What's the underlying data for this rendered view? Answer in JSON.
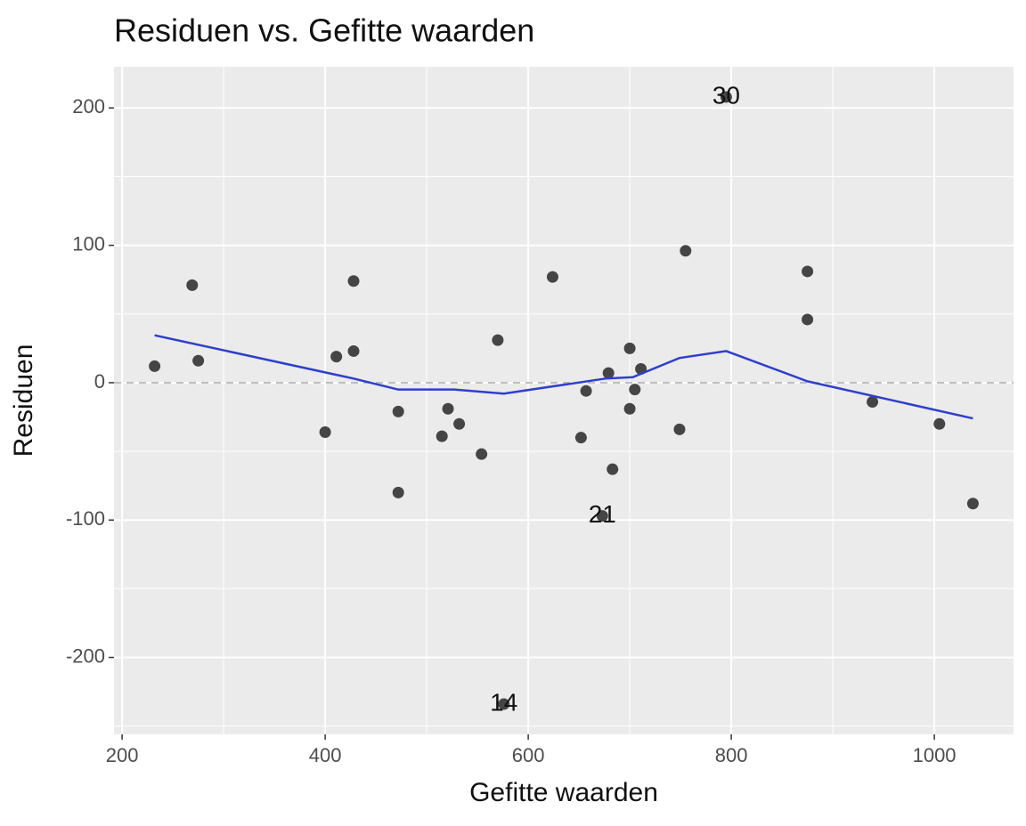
{
  "chart_data": {
    "type": "scatter",
    "title": "Residuen vs. Gefitte waarden",
    "x_label": "Gefitte waarden",
    "y_label": "Residuen",
    "xlim": [
      192,
      1078
    ],
    "ylim": [
      -256,
      230
    ],
    "xticks": [
      200,
      400,
      600,
      800,
      1000
    ],
    "yticks": [
      -200,
      -100,
      0,
      100,
      200
    ],
    "minor_xticks": [
      300,
      500,
      700,
      900
    ],
    "minor_yticks": [
      -250,
      -150,
      -50,
      50,
      150
    ],
    "grid": true,
    "hline": 0,
    "points": {
      "color": "#454545",
      "x": [
        232,
        269,
        275,
        400,
        411,
        428,
        428,
        472,
        472,
        515,
        521,
        532,
        554,
        570,
        576,
        624,
        652,
        657,
        673,
        679,
        683,
        700,
        700,
        705,
        711,
        749,
        755,
        795,
        875,
        875,
        939,
        1005,
        1038
      ],
      "values": [
        12,
        71,
        16,
        -36,
        19,
        74,
        23,
        -21,
        -80,
        -39,
        -19,
        -30,
        -52,
        31,
        -234,
        77,
        -40,
        -6,
        -97,
        7,
        -63,
        25,
        -19,
        -5,
        10,
        -34,
        96,
        208,
        81,
        46,
        -14,
        -30,
        -88
      ],
      "point_labels": [
        null,
        null,
        null,
        null,
        null,
        null,
        null,
        null,
        null,
        null,
        null,
        null,
        null,
        null,
        "14",
        null,
        null,
        null,
        "21",
        null,
        null,
        null,
        null,
        null,
        null,
        null,
        null,
        "30",
        null,
        null,
        null,
        null,
        null
      ]
    },
    "smooth": {
      "color": "#2f3fcc",
      "x": [
        232,
        428,
        472,
        527,
        576,
        676,
        703,
        749,
        795,
        875,
        1038
      ],
      "values": [
        34.5,
        3,
        -5,
        -5,
        -8,
        3,
        4,
        18,
        23,
        1,
        -26
      ]
    }
  }
}
